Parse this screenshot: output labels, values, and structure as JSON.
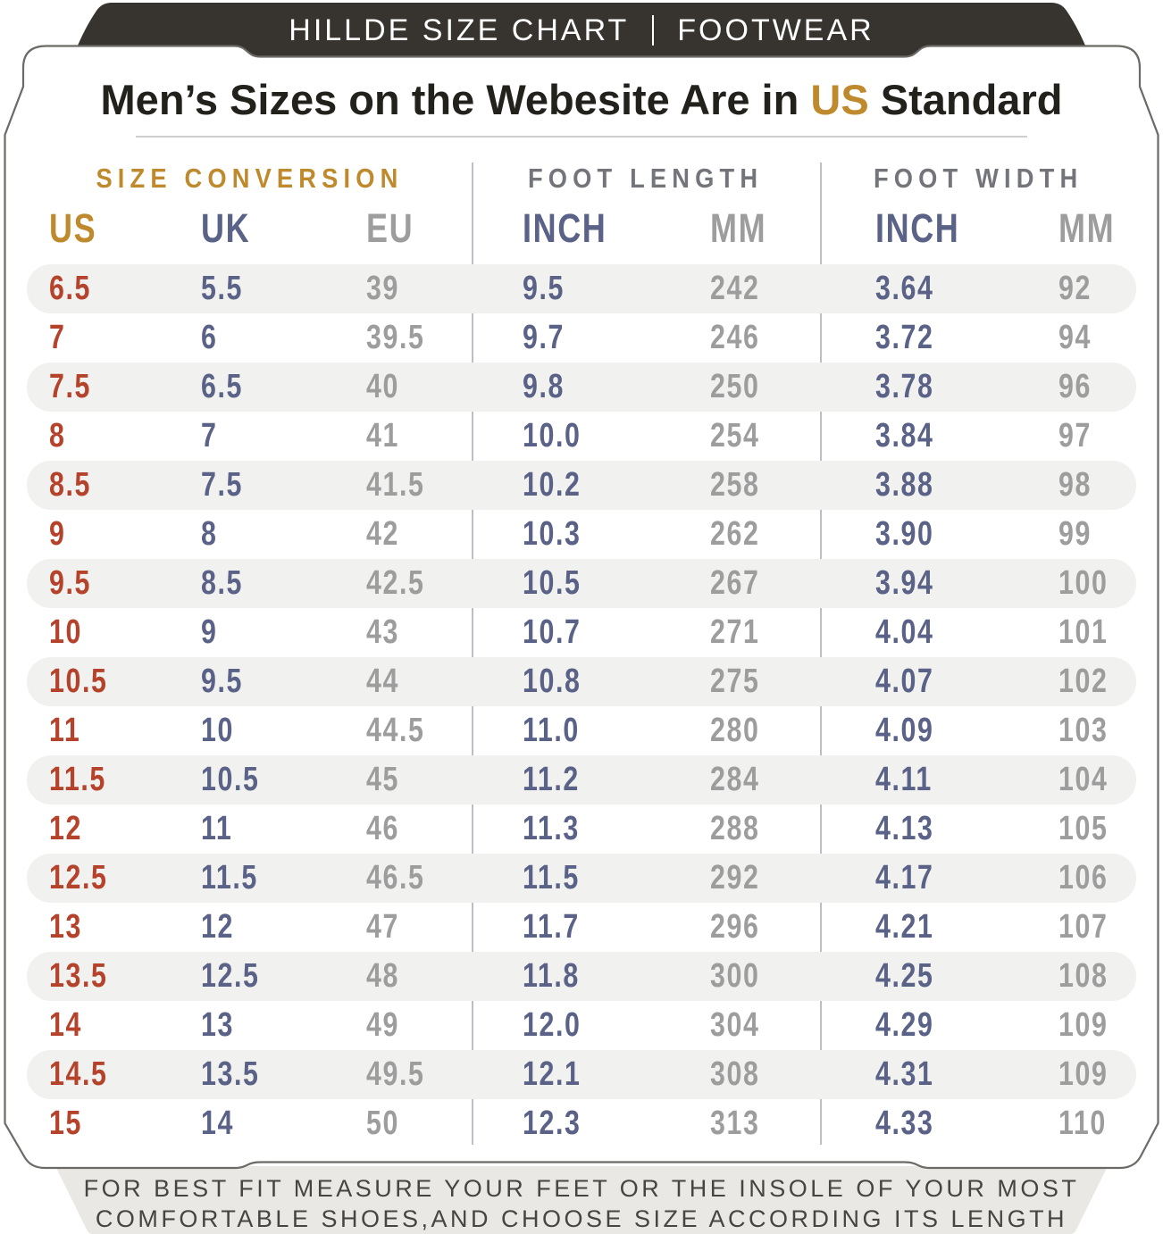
{
  "banner": {
    "brand": "HILLDE SIZE CHART",
    "category": "FOOTWEAR"
  },
  "title": {
    "prefix": "Men’s Sizes on the Webesite Are in ",
    "highlight": "US",
    "suffix": " Standard"
  },
  "footer": {
    "line1": "FOR BEST FIT MEASURE YOUR FEET OR THE INSOLE OF YOUR MOST",
    "line2": "COMFORTABLE SHOES,AND CHOOSE SIZE ACCORDING ITS LENGTH"
  },
  "colors": {
    "banner_bg": "#37342f",
    "accent_gold": "#bf8a2d",
    "us_value_red": "#b5432c",
    "blue_value": "#5a6287",
    "gray_value": "#9d9d9d",
    "section_gray": "#73757a",
    "stripe_bg": "#f1f1ef",
    "footer_bg": "#e9e8e5",
    "card_border": "#6b6a66"
  },
  "chart_data": {
    "type": "table",
    "title": "Men’s Sizes on the Webesite Are in US Standard",
    "sections": [
      "SIZE CONVERSION",
      "FOOT LENGTH",
      "FOOT WIDTH"
    ],
    "column_groups": [
      {
        "section": "SIZE CONVERSION",
        "columns": [
          "US",
          "UK",
          "EU"
        ]
      },
      {
        "section": "FOOT LENGTH",
        "columns": [
          "INCH",
          "MM"
        ]
      },
      {
        "section": "FOOT WIDTH",
        "columns": [
          "INCH",
          "MM"
        ]
      }
    ],
    "columns": [
      "US",
      "UK",
      "EU",
      "INCH",
      "MM",
      "INCH",
      "MM"
    ],
    "rows": [
      [
        "6.5",
        "5.5",
        "39",
        "9.5",
        "242",
        "3.64",
        "92"
      ],
      [
        "7",
        "6",
        "39.5",
        "9.7",
        "246",
        "3.72",
        "94"
      ],
      [
        "7.5",
        "6.5",
        "40",
        "9.8",
        "250",
        "3.78",
        "96"
      ],
      [
        "8",
        "7",
        "41",
        "10.0",
        "254",
        "3.84",
        "97"
      ],
      [
        "8.5",
        "7.5",
        "41.5",
        "10.2",
        "258",
        "3.88",
        "98"
      ],
      [
        "9",
        "8",
        "42",
        "10.3",
        "262",
        "3.90",
        "99"
      ],
      [
        "9.5",
        "8.5",
        "42.5",
        "10.5",
        "267",
        "3.94",
        "100"
      ],
      [
        "10",
        "9",
        "43",
        "10.7",
        "271",
        "4.04",
        "101"
      ],
      [
        "10.5",
        "9.5",
        "44",
        "10.8",
        "275",
        "4.07",
        "102"
      ],
      [
        "11",
        "10",
        "44.5",
        "11.0",
        "280",
        "4.09",
        "103"
      ],
      [
        "11.5",
        "10.5",
        "45",
        "11.2",
        "284",
        "4.11",
        "104"
      ],
      [
        "12",
        "11",
        "46",
        "11.3",
        "288",
        "4.13",
        "105"
      ],
      [
        "12.5",
        "11.5",
        "46.5",
        "11.5",
        "292",
        "4.17",
        "106"
      ],
      [
        "13",
        "12",
        "47",
        "11.7",
        "296",
        "4.21",
        "107"
      ],
      [
        "13.5",
        "12.5",
        "48",
        "11.8",
        "300",
        "4.25",
        "108"
      ],
      [
        "14",
        "13",
        "49",
        "12.0",
        "304",
        "4.29",
        "109"
      ],
      [
        "14.5",
        "13.5",
        "49.5",
        "12.1",
        "308",
        "4.31",
        "109"
      ],
      [
        "15",
        "14",
        "50",
        "12.3",
        "313",
        "4.33",
        "110"
      ]
    ]
  }
}
